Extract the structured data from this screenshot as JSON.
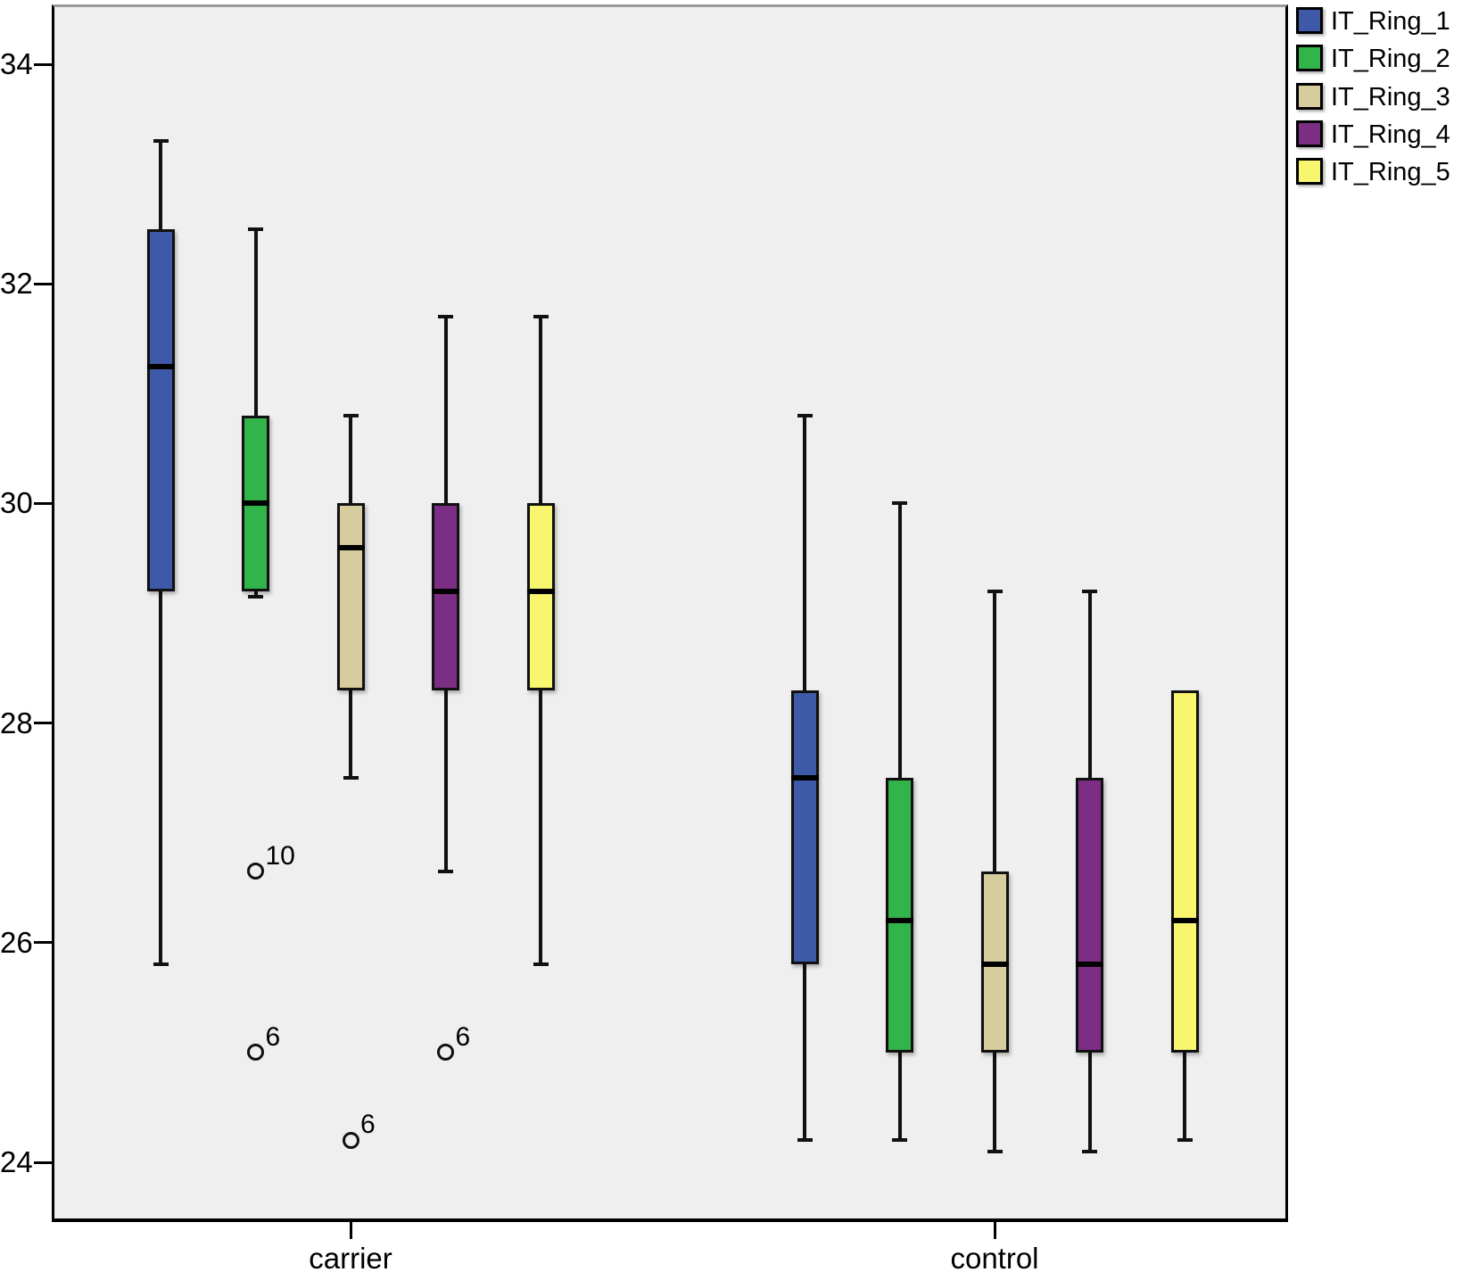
{
  "figure": {
    "background": "#ffffff",
    "plot_background": "#efefef"
  },
  "chart_data": {
    "type": "boxplot",
    "title": "",
    "xlabel": "",
    "ylabel": "",
    "grid": false,
    "legend_position": "top-right",
    "groups": [
      "carrier",
      "control"
    ],
    "y_axis": {
      "ticks": [
        34,
        32,
        30,
        28,
        26,
        24
      ],
      "range": [
        23.4,
        34.5
      ]
    },
    "series": [
      {
        "name": "IT_Ring_1",
        "color": "#3e59a8",
        "boxes": {
          "carrier": {
            "low": 25.8,
            "q1": 29.2,
            "median": 31.25,
            "q3": 32.5,
            "high": 33.3,
            "outliers": []
          },
          "control": {
            "low": 24.2,
            "q1": 25.8,
            "median": 27.5,
            "q3": 28.3,
            "high": 30.8,
            "outliers": []
          }
        }
      },
      {
        "name": "IT_Ring_2",
        "color": "#31b449",
        "boxes": {
          "carrier": {
            "low": 29.15,
            "q1": 29.2,
            "median": 30.0,
            "q3": 30.8,
            "high": 32.5,
            "outliers": [
              {
                "value": 26.65,
                "label": "10"
              },
              {
                "value": 25.0,
                "label": "6"
              }
            ]
          },
          "control": {
            "low": 24.2,
            "q1": 25.0,
            "median": 26.2,
            "q3": 27.5,
            "high": 30.0,
            "outliers": []
          }
        }
      },
      {
        "name": "IT_Ring_3",
        "color": "#d6cc9d",
        "boxes": {
          "carrier": {
            "low": 27.5,
            "q1": 28.3,
            "median": 29.6,
            "q3": 30.0,
            "high": 30.8,
            "outliers": [
              {
                "value": 24.2,
                "label": "6"
              }
            ]
          },
          "control": {
            "low": 24.1,
            "q1": 25.0,
            "median": 25.8,
            "q3": 26.65,
            "high": 29.2,
            "outliers": []
          }
        }
      },
      {
        "name": "IT_Ring_4",
        "color": "#7c2e84",
        "boxes": {
          "carrier": {
            "low": 26.65,
            "q1": 28.3,
            "median": 29.2,
            "q3": 30.0,
            "high": 31.7,
            "outliers": [
              {
                "value": 25.0,
                "label": "6"
              }
            ]
          },
          "control": {
            "low": 24.1,
            "q1": 25.0,
            "median": 25.8,
            "q3": 27.5,
            "high": 29.2,
            "outliers": []
          }
        }
      },
      {
        "name": "IT_Ring_5",
        "color": "#f8f66e",
        "boxes": {
          "carrier": {
            "low": 25.8,
            "q1": 28.3,
            "median": 29.2,
            "q3": 30.0,
            "high": 31.7,
            "outliers": []
          },
          "control": {
            "low": 24.2,
            "q1": 25.0,
            "median": 26.2,
            "q3": 28.3,
            "high": 28.3,
            "outliers": []
          }
        }
      }
    ]
  }
}
